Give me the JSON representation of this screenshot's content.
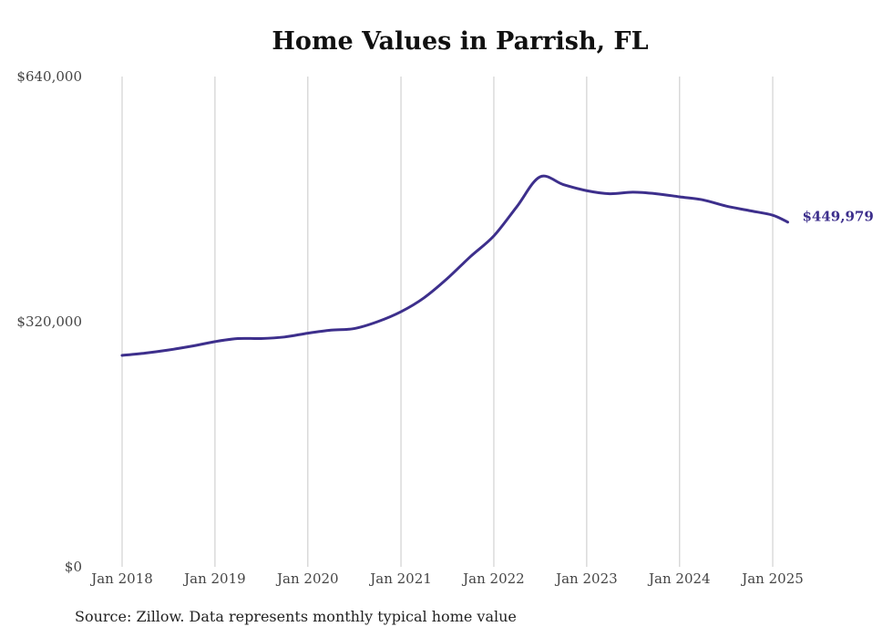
{
  "chart_data": {
    "type": "line",
    "title": "Home Values in Parrish, FL",
    "xlabel": "",
    "ylabel": "",
    "ylim": [
      0,
      640000
    ],
    "y_ticks": [
      0,
      320000,
      640000
    ],
    "y_tick_labels": [
      "$0",
      "$320,000",
      "$640,000"
    ],
    "x_ticks": [
      "2018-01",
      "2019-01",
      "2020-01",
      "2021-01",
      "2022-01",
      "2023-01",
      "2024-01",
      "2025-01"
    ],
    "x_tick_labels": [
      "Jan 2018",
      "Jan 2019",
      "Jan 2020",
      "Jan 2021",
      "Jan 2022",
      "Jan 2023",
      "Jan 2024",
      "Jan 2025"
    ],
    "grid": "vertical",
    "series": [
      {
        "color": "#3d2f8c",
        "end_label": "$449,979",
        "points": [
          [
            "2018-01",
            276000
          ],
          [
            "2018-04",
            279000
          ],
          [
            "2018-07",
            283000
          ],
          [
            "2018-10",
            288000
          ],
          [
            "2019-01",
            294000
          ],
          [
            "2019-04",
            298000
          ],
          [
            "2019-07",
            298000
          ],
          [
            "2019-10",
            300000
          ],
          [
            "2020-01",
            305000
          ],
          [
            "2020-04",
            309000
          ],
          [
            "2020-07",
            311000
          ],
          [
            "2020-10",
            320000
          ],
          [
            "2021-01",
            333000
          ],
          [
            "2021-04",
            351000
          ],
          [
            "2021-07",
            376000
          ],
          [
            "2021-10",
            405000
          ],
          [
            "2022-01",
            432000
          ],
          [
            "2022-04",
            470000
          ],
          [
            "2022-07",
            509000
          ],
          [
            "2022-10",
            499000
          ],
          [
            "2023-01",
            491000
          ],
          [
            "2023-04",
            487000
          ],
          [
            "2023-07",
            489000
          ],
          [
            "2023-10",
            487000
          ],
          [
            "2024-01",
            483000
          ],
          [
            "2024-04",
            479000
          ],
          [
            "2024-07",
            471000
          ],
          [
            "2024-10",
            465000
          ],
          [
            "2025-01",
            459000
          ],
          [
            "2025-03",
            449979
          ]
        ]
      }
    ]
  },
  "source_note": "Source: Zillow. Data represents monthly typical home value"
}
